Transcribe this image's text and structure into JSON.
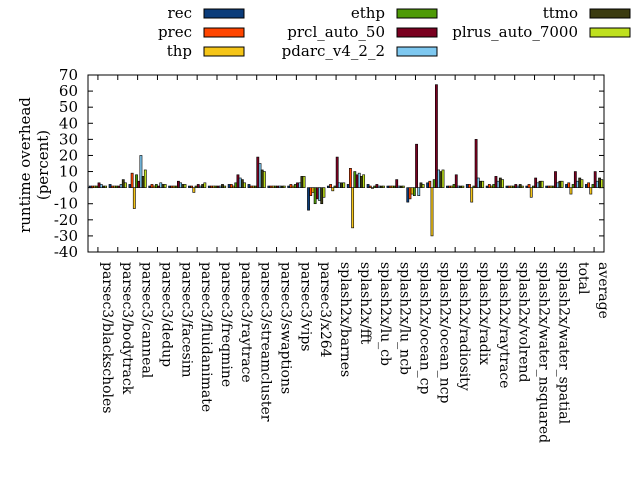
{
  "chart_data": {
    "type": "bar",
    "ylabel": "runtime overhead\n(percent)",
    "ylim": [
      -40,
      70
    ],
    "yticks": [
      -40,
      -30,
      -20,
      -10,
      0,
      10,
      20,
      30,
      40,
      50,
      60,
      70
    ],
    "grid": false,
    "legend_position": "top",
    "categories": [
      "parsec3/blackscholes",
      "parsec3/bodytrack",
      "parsec3/canneal",
      "parsec3/dedup",
      "parsec3/facesim",
      "parsec3/fluidanimate",
      "parsec3/freqmine",
      "parsec3/raytrace",
      "parsec3/streamcluster",
      "parsec3/swaptions",
      "parsec3/vips",
      "parsec3/x264",
      "splash2x/barnes",
      "splash2x/fft",
      "splash2x/lu_cb",
      "splash2x/lu_ncb",
      "splash2x/ocean_cp",
      "splash2x/ocean_ncp",
      "splash2x/radiosity",
      "splash2x/radix",
      "splash2x/raytrace",
      "splash2x/volrend",
      "splash2x/water_nsquared",
      "splash2x/water_spatial",
      "total",
      "average"
    ],
    "series": [
      {
        "name": "rec",
        "color": "#0b3c7a",
        "values": [
          1,
          2,
          2,
          1,
          1,
          1,
          1,
          2,
          2,
          1,
          1,
          -14,
          1,
          2,
          2,
          1,
          -9,
          3,
          1,
          2,
          1,
          1,
          1,
          1,
          2,
          2
        ]
      },
      {
        "name": "prec",
        "color": "#ff4500",
        "values": [
          1,
          1,
          9,
          2,
          1,
          1,
          1,
          2,
          1,
          1,
          2,
          -5,
          2,
          12,
          1,
          1,
          -7,
          4,
          1,
          2,
          2,
          1,
          2,
          1,
          3,
          3
        ]
      },
      {
        "name": "thp",
        "color": "#f5c518",
        "values": [
          1,
          1,
          -13,
          1,
          1,
          -3,
          1,
          1,
          1,
          1,
          1,
          -3,
          -2,
          -25,
          0,
          1,
          -4,
          -30,
          1,
          -9,
          1,
          1,
          -6,
          1,
          -4,
          -4
        ]
      },
      {
        "name": "ethp",
        "color": "#4e9a06",
        "values": [
          1,
          1,
          8,
          2,
          1,
          1,
          1,
          3,
          1,
          1,
          2,
          -10,
          1,
          10,
          1,
          1,
          -5,
          5,
          2,
          1,
          2,
          1,
          1,
          1,
          2,
          2
        ]
      },
      {
        "name": "prcl_auto_50",
        "color": "#7a0020",
        "values": [
          3,
          1,
          4,
          1,
          4,
          2,
          1,
          8,
          19,
          1,
          3,
          -7,
          19,
          8,
          2,
          5,
          27,
          64,
          8,
          30,
          7,
          2,
          6,
          10,
          10,
          10
        ]
      },
      {
        "name": "pdarc_v4_2_2",
        "color": "#7ec8f0",
        "values": [
          2,
          2,
          20,
          3,
          3,
          1,
          1,
          6,
          15,
          1,
          3,
          -8,
          3,
          9,
          1,
          1,
          -5,
          11,
          1,
          6,
          4,
          1,
          3,
          3,
          4,
          4
        ]
      },
      {
        "name": "ttmo",
        "color": "#3b3b10",
        "values": [
          1,
          5,
          7,
          2,
          2,
          2,
          2,
          5,
          11,
          1,
          7,
          -10,
          3,
          7,
          1,
          1,
          3,
          10,
          1,
          4,
          6,
          2,
          4,
          4,
          6,
          6
        ]
      },
      {
        "name": "plrus_auto_7000",
        "color": "#bfe01f",
        "values": [
          1,
          3,
          11,
          2,
          2,
          3,
          1,
          3,
          10,
          1,
          7,
          -6,
          3,
          8,
          1,
          1,
          2,
          11,
          1,
          4,
          5,
          1,
          4,
          4,
          5,
          5
        ]
      }
    ]
  }
}
